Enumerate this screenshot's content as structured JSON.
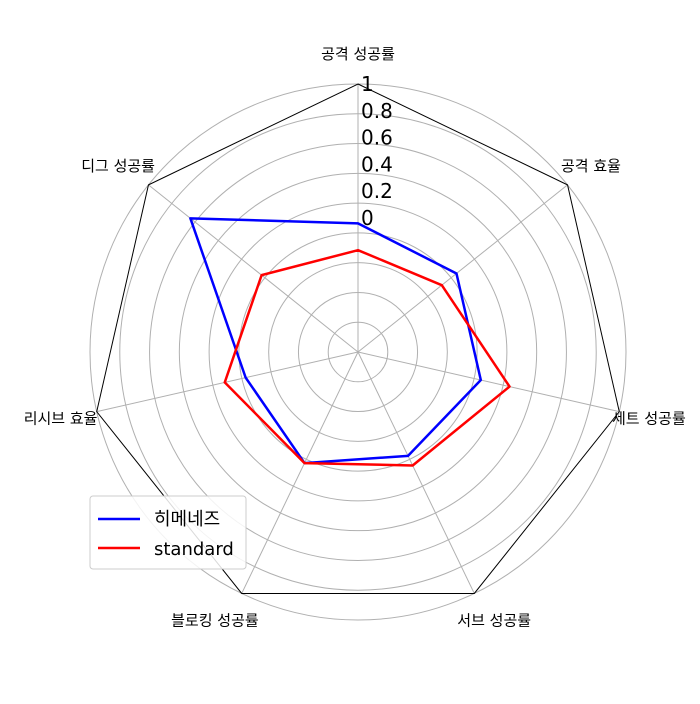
{
  "chart_data": {
    "type": "radar",
    "axes": [
      "공격 성공률",
      "공격 효율",
      "세트 성공률",
      "서브 성공률",
      "블로킹 성공률",
      "리시브 효율",
      "디그 성공률"
    ],
    "radial_ticks": [
      "0",
      "0.2",
      "0.4",
      "0.6",
      "0.8",
      "1"
    ],
    "rlim": [
      0,
      1
    ],
    "grid": true,
    "legend_position": "lower-left",
    "series": [
      {
        "name": "히메네즈",
        "color": "#0000ff",
        "values": [
          0.48,
          0.47,
          0.47,
          0.43,
          0.46,
          0.43,
          0.8
        ]
      },
      {
        "name": "standard",
        "color": "#ff0000",
        "values": [
          0.38,
          0.4,
          0.58,
          0.47,
          0.46,
          0.51,
          0.46
        ]
      }
    ]
  }
}
